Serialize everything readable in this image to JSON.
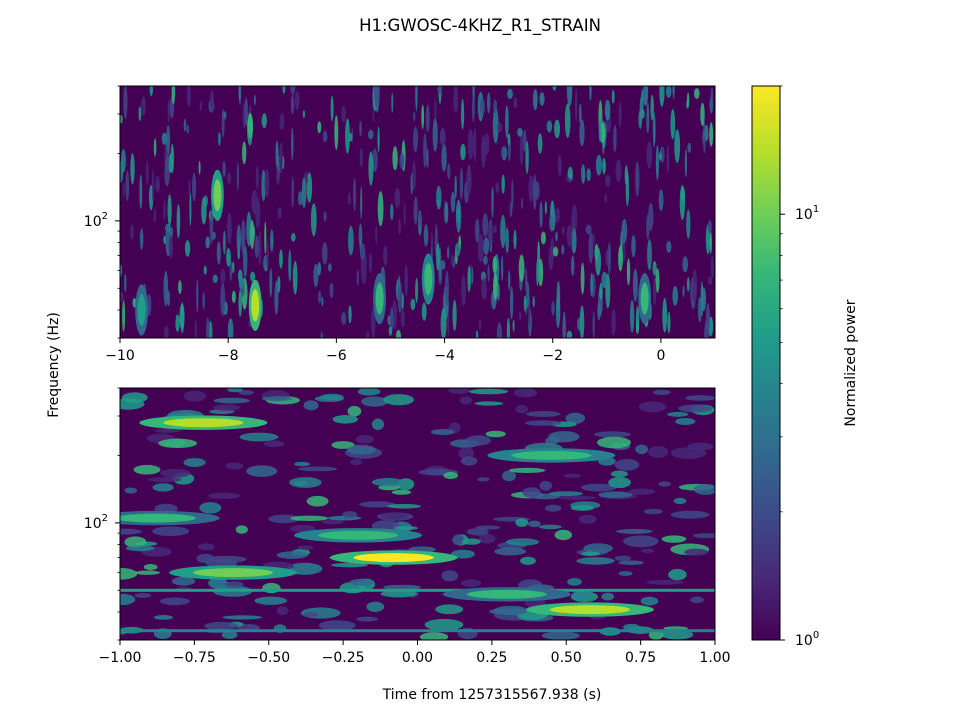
{
  "title": "H1:GWOSC-4KHZ_R1_STRAIN",
  "ylabel": "Frequency (Hz)",
  "xlabel": "Time from 1257315567.938 (s)",
  "colorbar": {
    "label": "Normalized power",
    "scale": "log",
    "range": [
      1,
      20
    ],
    "colormap": "viridis",
    "tick_labels": [
      {
        "base": "10",
        "exp": "1",
        "value": 10
      },
      {
        "base": "10",
        "exp": "0",
        "value": 1
      }
    ]
  },
  "colors": {
    "viridis": [
      "#440154",
      "#482878",
      "#3e4989",
      "#31688e",
      "#26828e",
      "#1f9e89",
      "#35b779",
      "#6ece58",
      "#b5de2b",
      "#fde725"
    ]
  },
  "chart_data": [
    {
      "type": "heatmap",
      "panel": "top",
      "x_range": [
        -10,
        1
      ],
      "y_scale": "log",
      "y_range": [
        30,
        400
      ],
      "x_ticks": [
        -10,
        -8,
        -6,
        -4,
        -2,
        0
      ],
      "x_tick_labels": [
        "−10",
        "−8",
        "−6",
        "−4",
        "−2",
        "0"
      ],
      "y_tick_labels": [
        {
          "base": "10",
          "exp": "2",
          "value": 100
        }
      ],
      "description_of_pattern": "noisy vertical streaks, brighter clusters near 40-60 Hz at -7.5 and -4.3 s",
      "hotspots": [
        {
          "t": -7.5,
          "f": 42,
          "power": 14
        },
        {
          "t": -8.2,
          "f": 130,
          "power": 10
        },
        {
          "t": -4.3,
          "f": 55,
          "power": 8
        },
        {
          "t": -5.2,
          "f": 45,
          "power": 7
        },
        {
          "t": -0.3,
          "f": 45,
          "power": 7
        },
        {
          "t": -9.6,
          "f": 40,
          "power": 6
        }
      ]
    },
    {
      "type": "heatmap",
      "panel": "bottom",
      "x_range": [
        -1,
        1
      ],
      "y_scale": "log",
      "y_range": [
        30,
        400
      ],
      "x_ticks": [
        -1,
        -0.75,
        -0.5,
        -0.25,
        0,
        0.25,
        0.5,
        0.75,
        1
      ],
      "x_tick_labels": [
        "−1.00",
        "−0.75",
        "−0.50",
        "−0.25",
        "0.00",
        "0.25",
        "0.50",
        "0.75",
        "1.00"
      ],
      "y_tick_labels": [
        {
          "base": "10",
          "exp": "2",
          "value": 100
        }
      ],
      "hotspots": [
        {
          "t": -0.08,
          "f": 70,
          "power": 18
        },
        {
          "t": 0.58,
          "f": 41,
          "power": 15
        },
        {
          "t": -0.62,
          "f": 60,
          "power": 12
        },
        {
          "t": -0.2,
          "f": 88,
          "power": 8
        },
        {
          "t": -0.72,
          "f": 280,
          "power": 14
        },
        {
          "t": -0.88,
          "f": 105,
          "power": 7
        },
        {
          "t": 0.3,
          "f": 48,
          "power": 7
        },
        {
          "t": 0.45,
          "f": 200,
          "power": 8
        }
      ],
      "constant_bands": [
        {
          "f": 33,
          "power": 4
        },
        {
          "f": 50,
          "power": 5
        }
      ]
    }
  ]
}
